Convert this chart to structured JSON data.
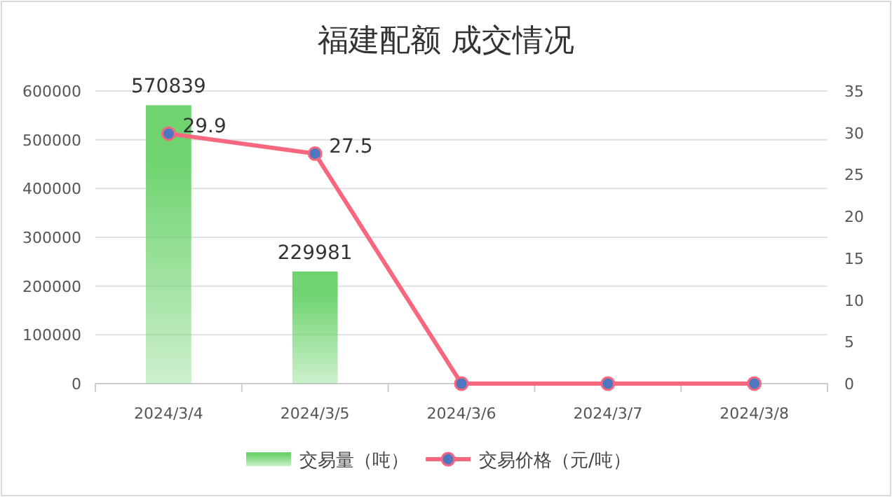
{
  "chart_data": {
    "type": "bar",
    "title": "福建配额 成交情况",
    "categories": [
      "2024/3/4",
      "2024/3/5",
      "2024/3/6",
      "2024/3/7",
      "2024/3/8"
    ],
    "series": [
      {
        "name": "交易量（吨）",
        "color": "#6fd46f",
        "values": [
          570839,
          229981,
          null,
          null,
          null
        ],
        "value_labels": [
          "570839",
          "229981",
          null,
          null,
          null
        ]
      },
      {
        "name": "交易价格（元/吨）",
        "type": "line",
        "axis": "y2",
        "color": "#f7687f",
        "values": [
          29.9,
          27.5,
          0,
          0,
          0
        ],
        "value_labels": [
          "29.9",
          "27.5",
          null,
          null,
          null
        ],
        "marker": "circle"
      }
    ],
    "ylim": [
      0,
      600000
    ],
    "yticks": [
      0,
      100000,
      200000,
      300000,
      400000,
      500000,
      600000
    ],
    "y2lim": [
      0,
      35
    ],
    "y2ticks": [
      0,
      5,
      10,
      15,
      20,
      25,
      30,
      35
    ],
    "grid": "y",
    "legend": "bottom"
  }
}
